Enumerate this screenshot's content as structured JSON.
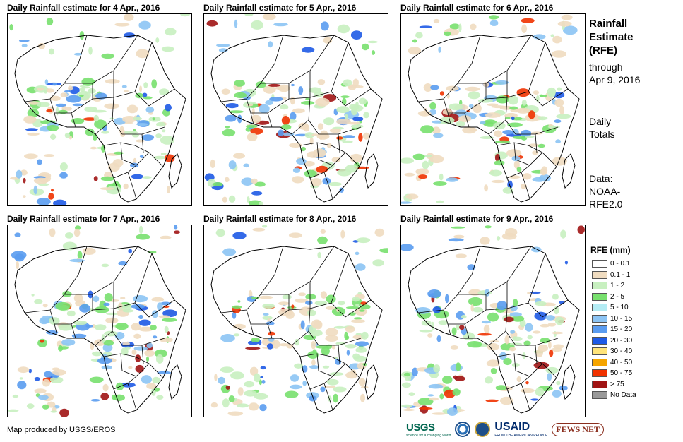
{
  "panels": [
    {
      "title": "Daily Rainfall estimate for 4 Apr., 2016",
      "seed": 4
    },
    {
      "title": "Daily Rainfall estimate for 5 Apr., 2016",
      "seed": 5
    },
    {
      "title": "Daily Rainfall estimate for 6 Apr., 2016",
      "seed": 6
    },
    {
      "title": "Daily Rainfall estimate for 7 Apr., 2016",
      "seed": 7
    },
    {
      "title": "Daily Rainfall estimate for 8 Apr., 2016",
      "seed": 8
    },
    {
      "title": "Daily Rainfall estimate for 9 Apr., 2016",
      "seed": 9
    }
  ],
  "sidebar": {
    "title_line1": "Rainfall",
    "title_line2": "Estimate",
    "title_line3": "(RFE)",
    "through_line1": "through",
    "through_line2": "Apr 9, 2016",
    "totals_line1": "Daily",
    "totals_line2": "Totals",
    "data_line1": "Data:",
    "data_line2": "NOAA-",
    "data_line3": "RFE2.0"
  },
  "legend": {
    "title": "RFE (mm)",
    "items": [
      {
        "label": "0 - 0.1",
        "color": "#ffffff"
      },
      {
        "label": "0.1 - 1",
        "color": "#f0dcc0"
      },
      {
        "label": "1 - 2",
        "color": "#c8f0c0"
      },
      {
        "label": "2 - 5",
        "color": "#78e06e"
      },
      {
        "label": "5 - 10",
        "color": "#b4ecf4"
      },
      {
        "label": "10 - 15",
        "color": "#8cc4f4"
      },
      {
        "label": "15 - 20",
        "color": "#5a9cf0"
      },
      {
        "label": "20 - 30",
        "color": "#1e5ae6"
      },
      {
        "label": "30 - 40",
        "color": "#ffe47a"
      },
      {
        "label": "40 - 50",
        "color": "#f5a500"
      },
      {
        "label": "50 - 75",
        "color": "#f03200"
      },
      {
        "label": "> 75",
        "color": "#a01414"
      },
      {
        "label": "No Data",
        "color": "#999999"
      }
    ]
  },
  "footer": {
    "credit": "Map produced by USGS/EROS",
    "logo_usgs": "USGS",
    "logo_usgs_tagline": "science for a changing world",
    "logo_usaid": "USAID",
    "logo_usaid_tagline": "FROM THE AMERICAN PEOPLE",
    "logo_fews": "FEWS NET"
  }
}
